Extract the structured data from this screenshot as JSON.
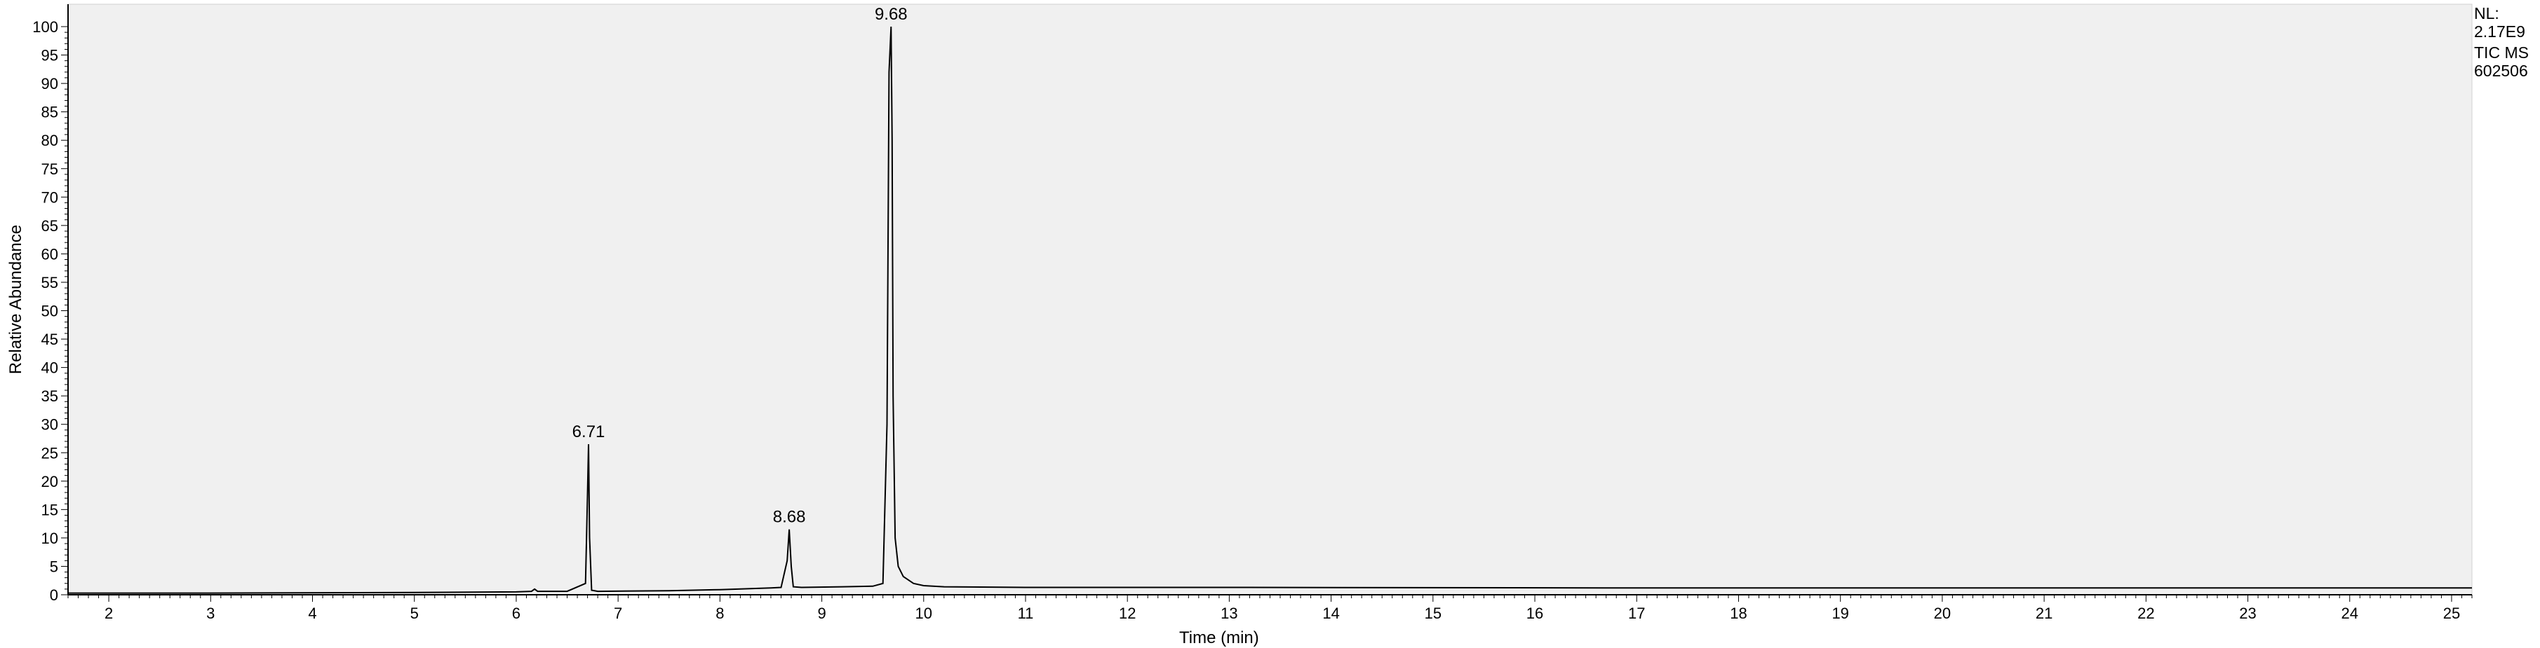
{
  "info": {
    "nl_label": "NL:",
    "nl_value": "2.17E9",
    "filter": "TIC  MS",
    "sample": "602506"
  },
  "colors": {
    "plot_bg": "#f0f0f0",
    "trace": "#000000",
    "axis": "#000000"
  },
  "chart_data": {
    "type": "line",
    "title": "",
    "xlabel": "Time (min)",
    "ylabel": "Relative Abundance",
    "xlim": [
      1.6,
      25.2
    ],
    "ylim": [
      0,
      100
    ],
    "x_ticks": [
      2,
      3,
      4,
      5,
      6,
      7,
      8,
      9,
      10,
      11,
      12,
      13,
      14,
      15,
      16,
      17,
      18,
      19,
      20,
      21,
      22,
      23,
      24,
      25
    ],
    "y_ticks": [
      0,
      5,
      10,
      15,
      20,
      25,
      30,
      35,
      40,
      45,
      50,
      55,
      60,
      65,
      70,
      75,
      80,
      85,
      90,
      95,
      100
    ],
    "grid": false,
    "legend": "none",
    "series": [
      {
        "x": [
          1.6,
          3.0,
          5.0,
          6.0,
          6.15,
          6.18,
          6.21,
          6.5,
          6.68,
          6.7,
          6.71,
          6.72,
          6.74,
          6.8,
          7.5,
          8.0,
          8.5,
          8.6,
          8.66,
          8.68,
          8.7,
          8.72,
          8.8,
          9.2,
          9.5,
          9.6,
          9.64,
          9.66,
          9.68,
          9.69,
          9.7,
          9.72,
          9.75,
          9.8,
          9.9,
          10.0,
          10.2,
          11.0,
          13.0,
          17.0,
          21.0,
          25.2
        ],
        "y": [
          0.3,
          0.3,
          0.4,
          0.5,
          0.6,
          1.0,
          0.6,
          0.6,
          2.0,
          18.0,
          26.5,
          10.0,
          0.8,
          0.6,
          0.7,
          0.9,
          1.2,
          1.3,
          6.0,
          11.5,
          5.0,
          1.4,
          1.3,
          1.4,
          1.5,
          2.0,
          30.0,
          92.0,
          100.0,
          80.0,
          35.0,
          10.0,
          5.0,
          3.2,
          2.0,
          1.6,
          1.4,
          1.3,
          1.3,
          1.2,
          1.2,
          1.2
        ]
      }
    ],
    "peak_labels": [
      {
        "x": 6.71,
        "y": 26.5,
        "text": "6.71"
      },
      {
        "x": 8.68,
        "y": 11.5,
        "text": "8.68"
      },
      {
        "x": 9.68,
        "y": 100,
        "text": "9.68"
      }
    ]
  }
}
